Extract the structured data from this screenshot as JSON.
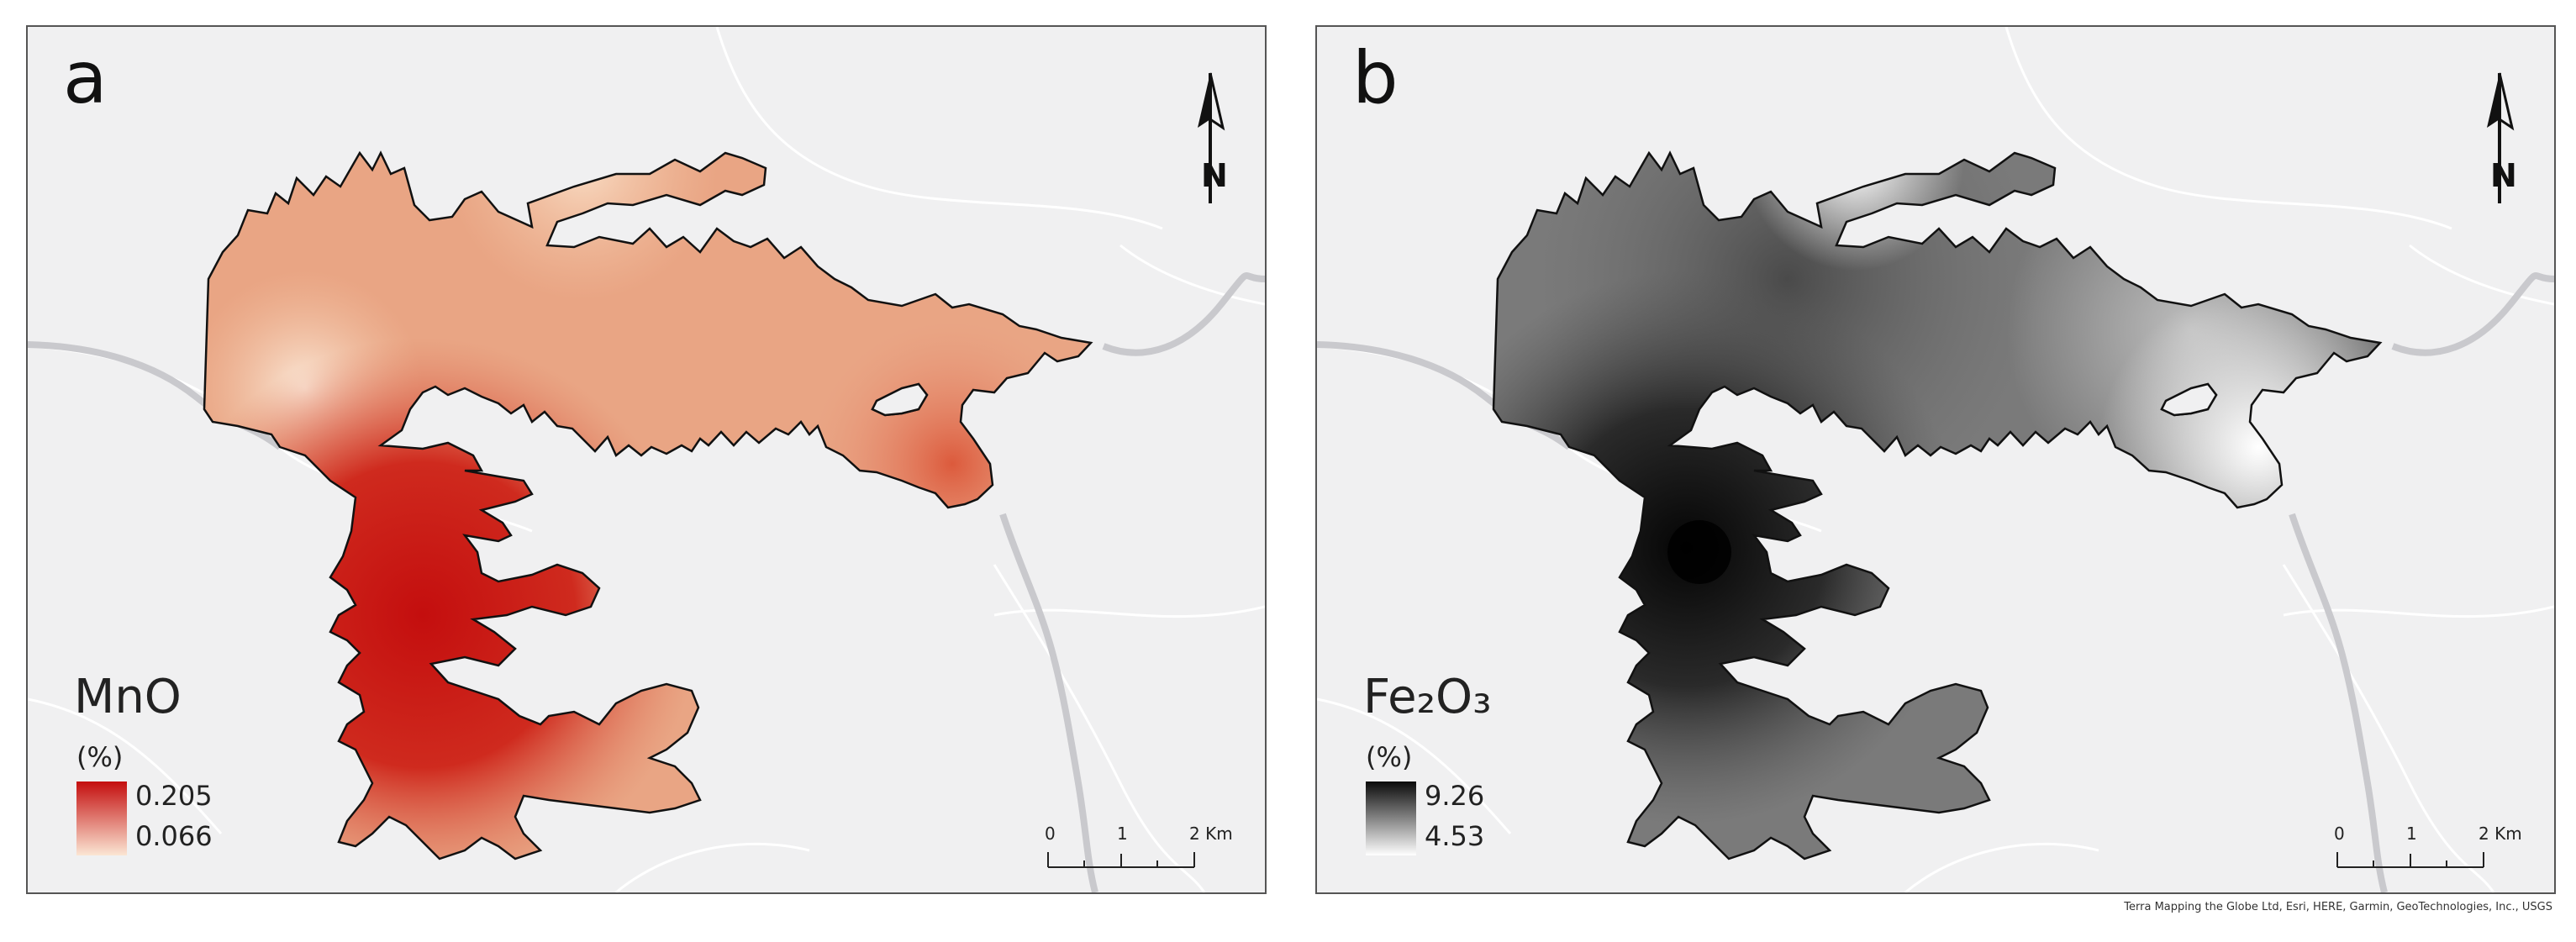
{
  "panels": [
    {
      "letter": "a",
      "legend_title": "MnO",
      "legend_unit": "(%)",
      "legend_max": "0.205",
      "legend_min": "0.066",
      "ramp_colors": {
        "high": "#c40e0e",
        "low": "#fbe6d4"
      }
    },
    {
      "letter": "b",
      "legend_title": "Fe₂O₃",
      "legend_unit": "(%)",
      "legend_max": "9.26",
      "legend_min": "4.53",
      "ramp_colors": {
        "high": "#0a0a0a",
        "low": "#ffffff"
      }
    }
  ],
  "scalebar": {
    "label_0": "0",
    "label_1": "1",
    "label_2": "2 Km"
  },
  "north_arrow_label": "N",
  "attribution": "Terra Mapping the Globe Ltd, Esri, HERE, Garmin, GeoTechnologies, Inc., USGS",
  "colors": {
    "basemap": "#f0f0f1",
    "river": "#c9c9cd",
    "roads": "#ffffff"
  }
}
